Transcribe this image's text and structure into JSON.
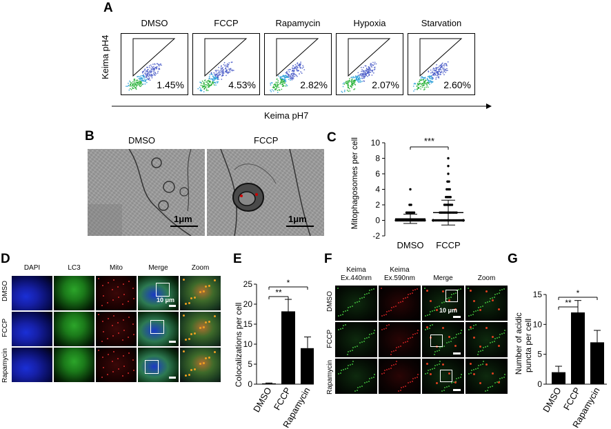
{
  "panels": {
    "A": {
      "label": "A",
      "conditions": [
        {
          "name": "DMSO",
          "value": "1.45%"
        },
        {
          "name": "FCCP",
          "value": "4.53%"
        },
        {
          "name": "Rapamycin",
          "value": "2.82%"
        },
        {
          "name": "Hypoxia",
          "value": "2.07%"
        },
        {
          "name": "Starvation",
          "value": "2.60%"
        }
      ],
      "ylabel": "Keima pH4",
      "xlabel": "Keima pH7"
    },
    "B": {
      "label": "B",
      "conditions": [
        "DMSO",
        "FCCP"
      ],
      "scalebar": "1μm"
    },
    "D": {
      "label": "D",
      "columns": [
        "DAPI",
        "LC3",
        "Mito",
        "Merge",
        "Zoom"
      ],
      "rows": [
        "DMSO",
        "FCCP",
        "Rapamycin"
      ],
      "scalebar": "10 μm"
    },
    "F": {
      "label": "F",
      "columns": [
        "Keima\nEx.440nm",
        "Keima\nEx.590nm",
        "Merge",
        "Zoom"
      ],
      "rows": [
        "DMSO",
        "FCCP",
        "Rapamycin"
      ],
      "scalebar": "10 μm"
    }
  },
  "chart_data": [
    {
      "panel": "C",
      "type": "scatter",
      "ylabel": "Mitophagosomes per cell",
      "categories": [
        "DMSO",
        "FCCP"
      ],
      "ylim": [
        -2,
        10
      ],
      "yticks": [
        -2,
        0,
        2,
        4,
        6,
        8,
        10
      ],
      "mean": [
        0.2,
        1.0
      ],
      "sd": [
        0.6,
        1.6
      ],
      "significance": "***"
    },
    {
      "panel": "E",
      "type": "bar",
      "ylabel": "Colocalizations per cell",
      "categories": [
        "DMSO",
        "FCCP",
        "Rapamycin"
      ],
      "values": [
        0.2,
        18.2,
        9.0
      ],
      "errors": [
        0.1,
        3.0,
        2.8
      ],
      "ylim": [
        0,
        25
      ],
      "yticks": [
        0,
        5,
        10,
        15,
        20,
        25
      ],
      "significance": [
        "**",
        "*"
      ]
    },
    {
      "panel": "G",
      "type": "bar",
      "ylabel": "Number of acidic\npuncta per cell",
      "categories": [
        "DMSO",
        "FCCP",
        "Rapamycin"
      ],
      "values": [
        2.0,
        12.0,
        7.0
      ],
      "errors": [
        1.0,
        2.0,
        2.0
      ],
      "ylim": [
        0,
        15
      ],
      "yticks": [
        0,
        5,
        10,
        15
      ],
      "significance": [
        "**",
        "*"
      ]
    }
  ]
}
